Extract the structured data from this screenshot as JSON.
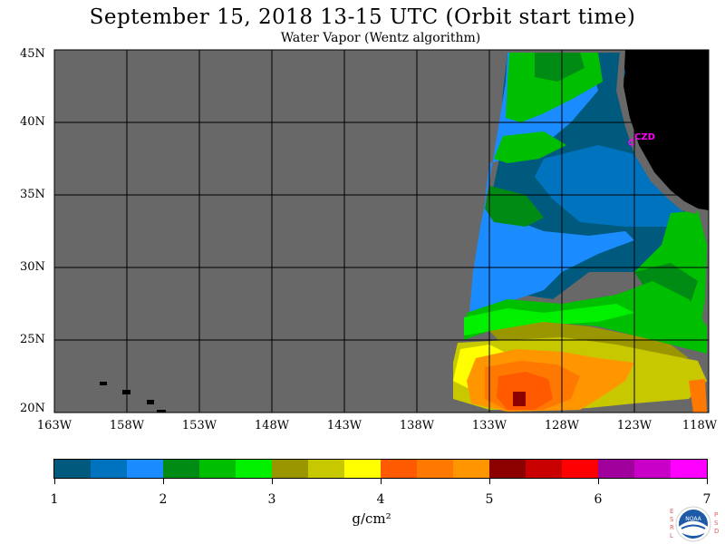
{
  "title": "September 15, 2018  13-15 UTC  (Orbit start time)",
  "subtitle": "Water Vapor (Wentz algorithm)",
  "lat_labels": [
    "45N",
    "40N",
    "35N",
    "30N",
    "25N",
    "20N"
  ],
  "lon_labels": [
    "163W",
    "158W",
    "153W",
    "148W",
    "143W",
    "138W",
    "133W",
    "128W",
    "123W",
    "118W"
  ],
  "city_label": "CZD",
  "colorbar": {
    "ticks": [
      "1",
      "2",
      "3",
      "4",
      "5",
      "6",
      "7"
    ],
    "units": "g/cm²",
    "colors": [
      "#005a7e",
      "#0073be",
      "#1a8cff",
      "#008c14",
      "#00be00",
      "#00f000",
      "#9a9600",
      "#c8c800",
      "#ffff00",
      "#ff5a00",
      "#ff7800",
      "#ff9600",
      "#8c0000",
      "#c80000",
      "#ff0000",
      "#a0009b",
      "#c800c8",
      "#ff00ff"
    ]
  },
  "colors": {
    "no_data": "#686868",
    "land": "#000000",
    "grid": "#000000"
  },
  "logo": {
    "left_text": "ESRL",
    "right_text": "PSD",
    "center_text": "NOAA"
  }
}
